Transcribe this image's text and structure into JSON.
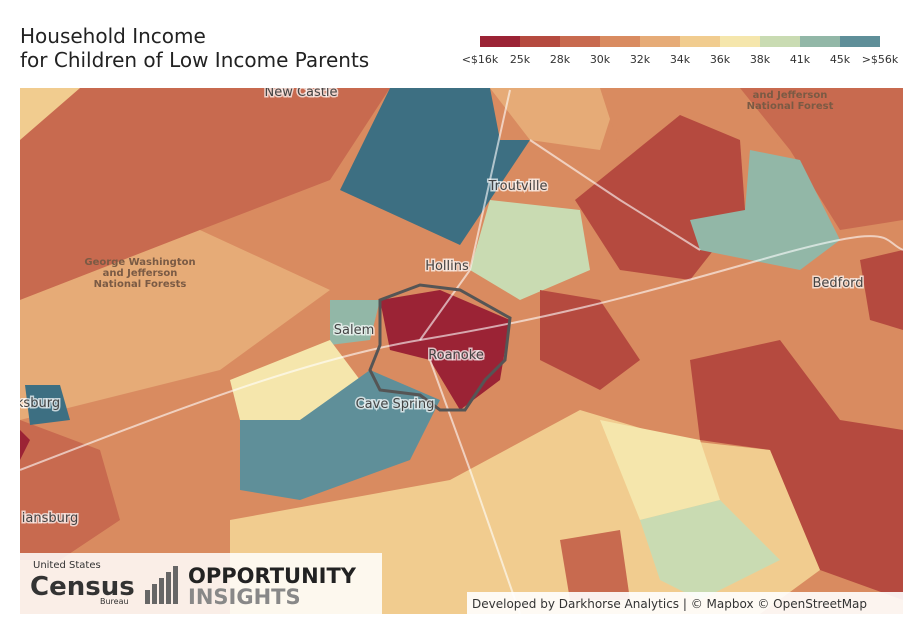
{
  "header": {
    "title_lines": [
      "Household Income",
      "for Children of Low Income Parents"
    ]
  },
  "legend": {
    "labels": [
      "<$16k",
      "25k",
      "28k",
      "30k",
      "32k",
      "34k",
      "36k",
      "38k",
      "41k",
      "45k",
      ">$56k"
    ],
    "colors": [
      "#9b2335",
      "#b54a3f",
      "#c86a4f",
      "#d98b60",
      "#e6ab77",
      "#f1cc8f",
      "#f5e6ac",
      "#c9dbb2",
      "#92b7a7",
      "#5f8f99"
    ]
  },
  "map": {
    "places": [
      {
        "lines": [
          "New Castle"
        ],
        "kind": "place"
      },
      {
        "lines": [
          "Troutville"
        ],
        "kind": "place"
      },
      {
        "lines": [
          "Hollins"
        ],
        "kind": "place"
      },
      {
        "lines": [
          "Salem"
        ],
        "kind": "place"
      },
      {
        "lines": [
          "Roanoke"
        ],
        "kind": "place"
      },
      {
        "lines": [
          "Cave Spring"
        ],
        "kind": "place"
      },
      {
        "lines": [
          "Bedford"
        ],
        "kind": "place"
      },
      {
        "lines": [
          "ksburg"
        ],
        "kind": "place"
      },
      {
        "lines": [
          "iansburg"
        ],
        "kind": "place"
      },
      {
        "lines": [
          "George Washington",
          "and Jefferson",
          "National Forests"
        ],
        "kind": "forest"
      },
      {
        "lines": [
          "and Jefferson",
          "National Forest"
        ],
        "kind": "forest"
      }
    ]
  },
  "footer": {
    "census": [
      "United States",
      "Census",
      "Bureau"
    ],
    "opportunity": [
      "OPPORTUNITY",
      "INSIGHTS"
    ],
    "attribution": "Developed by Darkhorse Analytics | © Mapbox © OpenStreetMap"
  }
}
